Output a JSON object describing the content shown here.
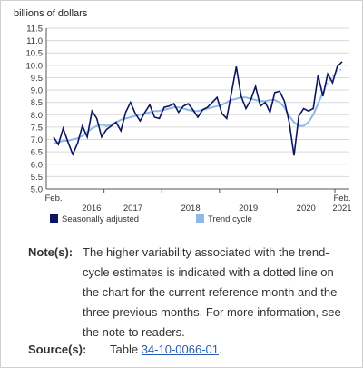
{
  "chart_data": {
    "type": "line",
    "ylabel": "billions of dollars",
    "ylim": [
      5.0,
      11.5
    ],
    "yticks": [
      "5.0",
      "5.5",
      "6.0",
      "6.5",
      "7.0",
      "7.5",
      "8.0",
      "8.5",
      "9.0",
      "9.5",
      "10.0",
      "10.5",
      "11.0",
      "11.5"
    ],
    "x_start_label": "Feb.",
    "x_end_label": [
      "Feb.",
      "2021"
    ],
    "year_labels": [
      "2016",
      "2017",
      "2018",
      "2019",
      "2020"
    ],
    "series": [
      {
        "name": "Seasonally adjusted",
        "color": "#0b1560",
        "values": [
          7.1,
          6.8,
          7.45,
          6.9,
          6.4,
          6.85,
          7.55,
          7.1,
          8.15,
          7.85,
          7.1,
          7.4,
          7.55,
          7.7,
          7.35,
          8.1,
          8.5,
          8.05,
          7.75,
          8.1,
          8.4,
          7.9,
          7.85,
          8.3,
          8.35,
          8.45,
          8.1,
          8.35,
          8.45,
          8.2,
          7.9,
          8.2,
          8.3,
          8.5,
          8.7,
          8.05,
          7.85,
          8.9,
          9.95,
          8.75,
          8.25,
          8.6,
          9.15,
          8.35,
          8.5,
          8.1,
          8.9,
          8.95,
          8.55,
          7.7,
          6.35,
          7.95,
          8.25,
          8.15,
          8.25,
          9.6,
          8.75,
          9.65,
          9.3,
          9.95,
          10.15
        ]
      },
      {
        "name": "Trend cycle",
        "color": "#8fb8e6",
        "values": [
          6.85,
          6.88,
          6.95,
          6.95,
          7.0,
          7.05,
          7.15,
          7.3,
          7.45,
          7.55,
          7.6,
          7.55,
          7.6,
          7.7,
          7.8,
          7.85,
          7.9,
          7.95,
          8.0,
          8.05,
          8.1,
          8.15,
          8.15,
          8.2,
          8.25,
          8.3,
          8.3,
          8.25,
          8.2,
          8.15,
          8.15,
          8.2,
          8.25,
          8.3,
          8.35,
          8.4,
          8.5,
          8.6,
          8.65,
          8.7,
          8.7,
          8.65,
          8.6,
          8.55,
          8.55,
          8.6,
          8.6,
          8.5,
          8.3,
          7.95,
          7.7,
          7.55,
          7.55,
          7.7,
          8.0,
          8.45,
          8.9,
          9.3,
          9.55,
          9.75,
          9.85
        ],
        "dotted_last": 4
      }
    ],
    "legend": "bottom"
  },
  "notes": {
    "note_label": "Note(s):",
    "note_text": "The higher variability associated with the trend-cycle estimates is indicated with a dotted line on the chart for the current reference month and the three previous months. For more information, see the note to readers.",
    "source_label": "Source(s):",
    "source_prefix": "Table ",
    "source_link": "34-10-0066-01",
    "source_suffix": "."
  }
}
